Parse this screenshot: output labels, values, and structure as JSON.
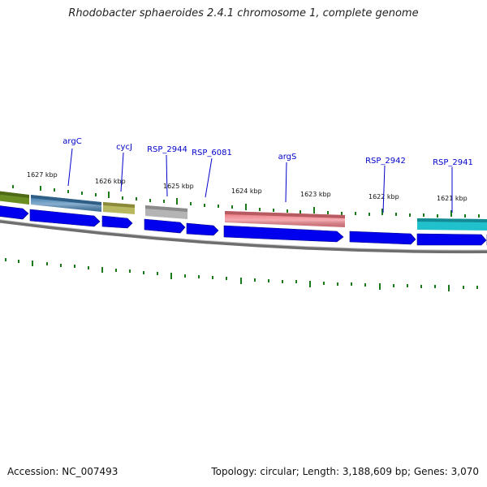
{
  "title": "Rhodobacter sphaeroides 2.4.1 chromosome 1, complete genome",
  "accession_text": "Accession: NC_007493",
  "summary_text": "Topology: circular; Length: 3,188,609 bp; Genes: 3,070",
  "colors": {
    "backbone": "#8a8a8a",
    "tick": "#1a7a1a",
    "cds_arrow": "#0000ee",
    "label": "#0000cc",
    "kbp_label": "#111111"
  },
  "kbp_labels": [
    "1627 kbp",
    "1626 kbp",
    "1625 kbp",
    "1624 kbp",
    "1623 kbp",
    "1622 kbp",
    "1621 kbp"
  ],
  "genes": [
    {
      "name": "argC",
      "color": "#4a84b4"
    },
    {
      "name": "cycJ",
      "color": "#b8b860"
    },
    {
      "name": "RSP_2944",
      "color": "#b4b4b4"
    },
    {
      "name": "RSP_6081",
      "color": "#0000ee"
    },
    {
      "name": "argS",
      "color": "#ee8088"
    },
    {
      "name": "RSP_2942",
      "color": "#0000ee"
    },
    {
      "name": "RSP_2941",
      "color": "#20c0cc"
    }
  ],
  "unlabeled_features": [
    {
      "color": "#6b8e23"
    }
  ]
}
